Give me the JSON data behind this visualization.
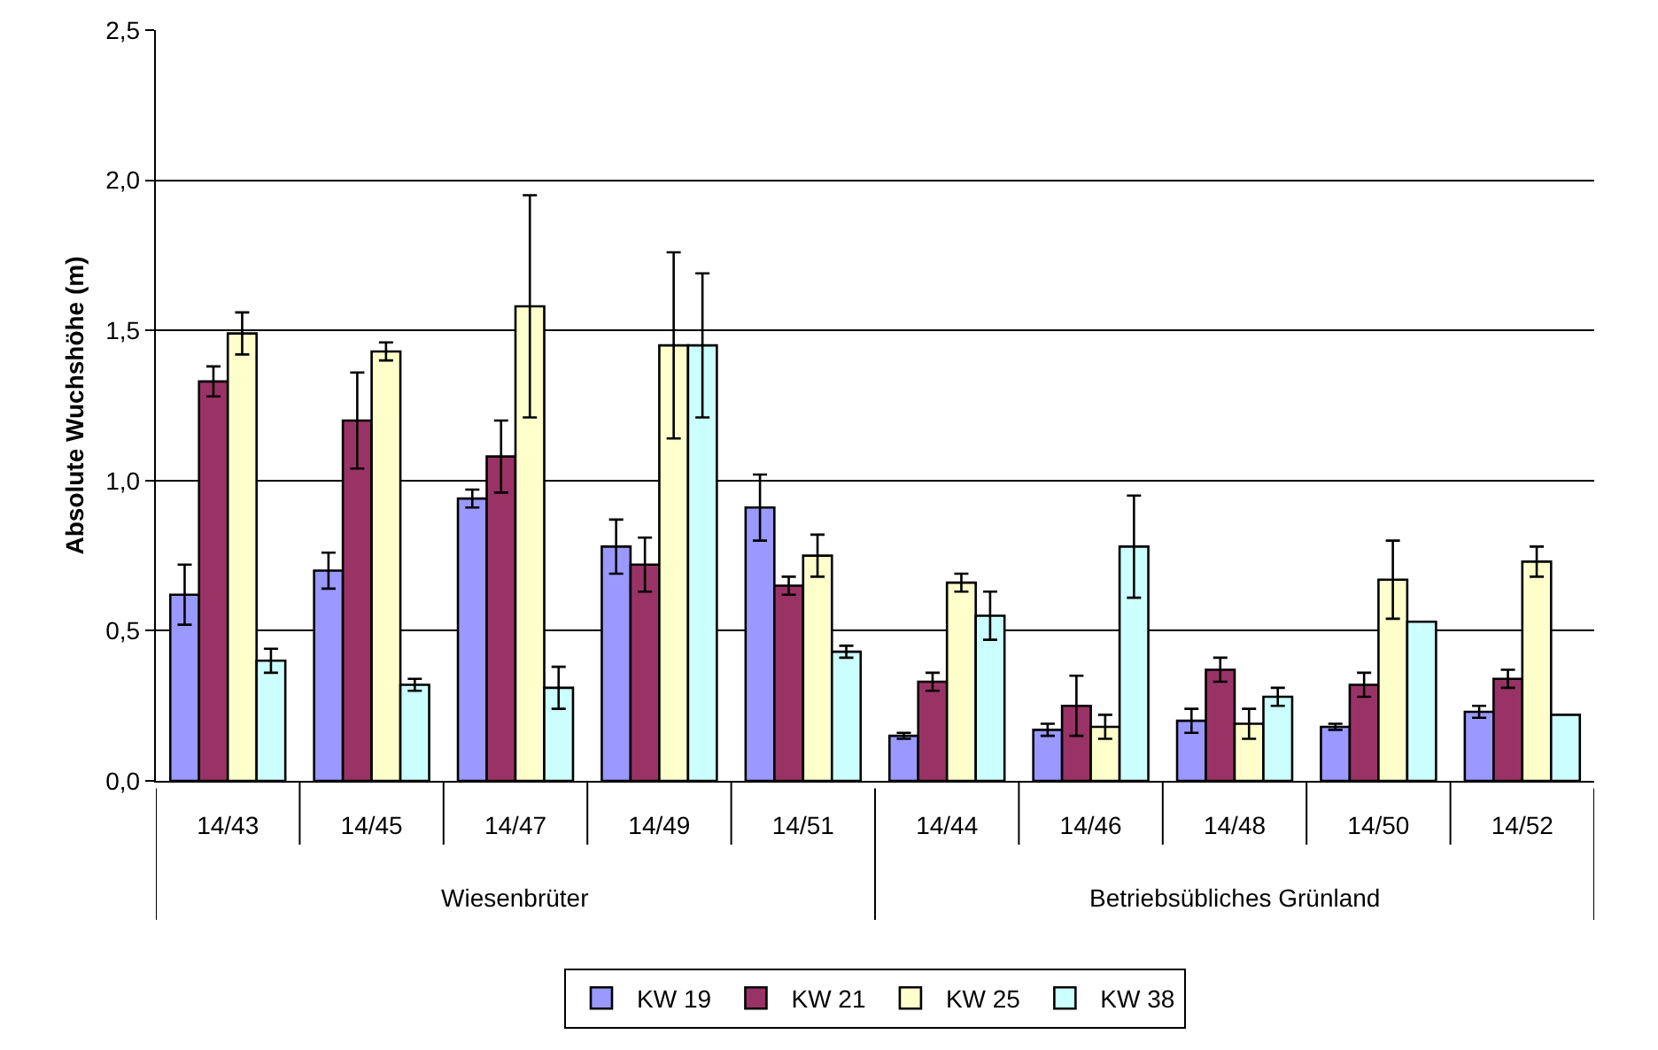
{
  "chart_data": {
    "type": "bar",
    "ylabel": "Absolute Wuchshöhe (m)",
    "categories": [
      "14/43",
      "14/45",
      "14/47",
      "14/49",
      "14/51",
      "14/44",
      "14/46",
      "14/48",
      "14/50",
      "14/52"
    ],
    "series": [
      {
        "name": "KW 19",
        "color": "#9999ff",
        "values": [
          0.62,
          0.7,
          0.94,
          0.78,
          0.91,
          0.15,
          0.17,
          0.2,
          0.18,
          0.23
        ],
        "errors": [
          0.1,
          0.06,
          0.03,
          0.09,
          0.11,
          0.01,
          0.02,
          0.04,
          0.01,
          0.02
        ]
      },
      {
        "name": "KW 21",
        "color": "#993366",
        "values": [
          1.33,
          1.2,
          1.08,
          0.72,
          0.65,
          0.33,
          0.25,
          0.37,
          0.32,
          0.34
        ],
        "errors": [
          0.05,
          0.16,
          0.12,
          0.09,
          0.03,
          0.03,
          0.1,
          0.04,
          0.04,
          0.03
        ]
      },
      {
        "name": "KW 25",
        "color": "#ffffcc",
        "values": [
          1.49,
          1.43,
          1.58,
          1.45,
          0.75,
          0.66,
          0.18,
          0.19,
          0.67,
          0.73
        ],
        "errors": [
          0.07,
          0.03,
          0.37,
          0.31,
          0.07,
          0.03,
          0.04,
          0.05,
          0.13,
          0.05
        ]
      },
      {
        "name": "KW 38",
        "color": "#ccffff",
        "values": [
          0.4,
          0.32,
          0.31,
          1.45,
          0.43,
          0.55,
          0.78,
          0.28,
          0.53,
          0.22
        ],
        "errors": [
          0.04,
          0.02,
          0.07,
          0.24,
          0.02,
          0.08,
          0.17,
          0.03,
          null,
          null
        ]
      }
    ],
    "ylim": [
      0,
      2.5
    ],
    "yticks": [
      {
        "value": 0,
        "label": "0,0"
      },
      {
        "value": 0.5,
        "label": "0,5"
      },
      {
        "value": 1,
        "label": "1,0"
      },
      {
        "value": 1.5,
        "label": "1,5"
      },
      {
        "value": 2,
        "label": "2,0"
      },
      {
        "value": 2.5,
        "label": "2,5"
      }
    ],
    "grid": "y",
    "legend": "bottom",
    "annotations": [
      "Wiesenbrüter",
      "Betriebsübliches Grünland"
    ]
  }
}
